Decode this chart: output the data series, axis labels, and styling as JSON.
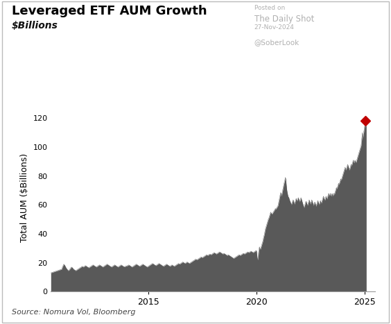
{
  "title": "Leveraged ETF AUM Growth",
  "subtitle": "$Billions",
  "ylabel": "Total AUM ($Billions)",
  "source": "Source: Nomura Vol, Bloomberg",
  "posted_on": "Posted on",
  "daily_shot": "The Daily Shot",
  "date_label": "27-Nov-2024",
  "soberlook": "@SoberLook",
  "fill_color": "#595959",
  "marker_color": "#c00000",
  "ylim": [
    0,
    130
  ],
  "yticks": [
    0,
    20,
    40,
    60,
    80,
    100,
    120
  ],
  "background_color": "#ffffff",
  "title_fontsize": 13,
  "subtitle_fontsize": 10,
  "ylabel_fontsize": 9,
  "source_fontsize": 8,
  "x_start_year": 2010.5,
  "x_end_year": 2025.5,
  "xticks": [
    2015,
    2020,
    2025
  ],
  "series": [
    [
      2010.5,
      13.0
    ],
    [
      2010.6,
      13.5
    ],
    [
      2010.7,
      14.0
    ],
    [
      2010.8,
      14.5
    ],
    [
      2010.9,
      15.0
    ],
    [
      2011.0,
      15.5
    ],
    [
      2011.05,
      17.5
    ],
    [
      2011.1,
      19.0
    ],
    [
      2011.15,
      18.0
    ],
    [
      2011.2,
      16.5
    ],
    [
      2011.25,
      15.5
    ],
    [
      2011.3,
      14.5
    ],
    [
      2011.35,
      15.0
    ],
    [
      2011.4,
      16.0
    ],
    [
      2011.45,
      17.0
    ],
    [
      2011.5,
      16.5
    ],
    [
      2011.55,
      15.5
    ],
    [
      2011.6,
      15.0
    ],
    [
      2011.65,
      14.5
    ],
    [
      2011.7,
      15.0
    ],
    [
      2011.75,
      15.5
    ],
    [
      2011.8,
      16.0
    ],
    [
      2011.85,
      16.5
    ],
    [
      2011.9,
      17.0
    ],
    [
      2011.95,
      17.5
    ],
    [
      2012.0,
      17.0
    ],
    [
      2012.05,
      17.5
    ],
    [
      2012.1,
      18.0
    ],
    [
      2012.15,
      17.5
    ],
    [
      2012.2,
      17.0
    ],
    [
      2012.25,
      16.5
    ],
    [
      2012.3,
      17.0
    ],
    [
      2012.35,
      17.5
    ],
    [
      2012.4,
      18.0
    ],
    [
      2012.45,
      18.5
    ],
    [
      2012.5,
      18.0
    ],
    [
      2012.55,
      17.5
    ],
    [
      2012.6,
      17.0
    ],
    [
      2012.65,
      17.5
    ],
    [
      2012.7,
      18.0
    ],
    [
      2012.75,
      18.5
    ],
    [
      2012.8,
      18.0
    ],
    [
      2012.85,
      17.5
    ],
    [
      2012.9,
      17.0
    ],
    [
      2012.95,
      17.5
    ],
    [
      2013.0,
      18.0
    ],
    [
      2013.05,
      18.5
    ],
    [
      2013.1,
      19.0
    ],
    [
      2013.15,
      18.5
    ],
    [
      2013.2,
      18.0
    ],
    [
      2013.25,
      17.5
    ],
    [
      2013.3,
      17.0
    ],
    [
      2013.35,
      17.5
    ],
    [
      2013.4,
      18.0
    ],
    [
      2013.45,
      18.5
    ],
    [
      2013.5,
      18.0
    ],
    [
      2013.55,
      17.5
    ],
    [
      2013.6,
      17.0
    ],
    [
      2013.65,
      17.5
    ],
    [
      2013.7,
      18.0
    ],
    [
      2013.75,
      18.5
    ],
    [
      2013.8,
      18.0
    ],
    [
      2013.85,
      17.5
    ],
    [
      2013.9,
      17.2
    ],
    [
      2013.95,
      17.5
    ],
    [
      2014.0,
      17.8
    ],
    [
      2014.05,
      18.0
    ],
    [
      2014.1,
      18.5
    ],
    [
      2014.15,
      18.0
    ],
    [
      2014.2,
      17.5
    ],
    [
      2014.25,
      17.0
    ],
    [
      2014.3,
      17.5
    ],
    [
      2014.35,
      18.0
    ],
    [
      2014.4,
      18.5
    ],
    [
      2014.45,
      19.0
    ],
    [
      2014.5,
      18.5
    ],
    [
      2014.55,
      18.0
    ],
    [
      2014.6,
      17.5
    ],
    [
      2014.65,
      18.0
    ],
    [
      2014.7,
      18.5
    ],
    [
      2014.75,
      19.0
    ],
    [
      2014.8,
      18.5
    ],
    [
      2014.85,
      18.0
    ],
    [
      2014.9,
      17.5
    ],
    [
      2014.95,
      17.0
    ],
    [
      2015.0,
      17.5
    ],
    [
      2015.05,
      18.0
    ],
    [
      2015.1,
      18.5
    ],
    [
      2015.15,
      19.0
    ],
    [
      2015.2,
      19.5
    ],
    [
      2015.25,
      19.0
    ],
    [
      2015.3,
      18.5
    ],
    [
      2015.35,
      18.0
    ],
    [
      2015.4,
      18.5
    ],
    [
      2015.45,
      19.0
    ],
    [
      2015.5,
      19.5
    ],
    [
      2015.55,
      19.0
    ],
    [
      2015.6,
      18.5
    ],
    [
      2015.65,
      18.0
    ],
    [
      2015.7,
      17.5
    ],
    [
      2015.75,
      18.0
    ],
    [
      2015.8,
      18.5
    ],
    [
      2015.85,
      19.0
    ],
    [
      2015.9,
      18.5
    ],
    [
      2015.95,
      18.0
    ],
    [
      2016.0,
      17.5
    ],
    [
      2016.05,
      18.0
    ],
    [
      2016.1,
      18.5
    ],
    [
      2016.15,
      18.0
    ],
    [
      2016.2,
      17.5
    ],
    [
      2016.25,
      18.0
    ],
    [
      2016.3,
      18.5
    ],
    [
      2016.35,
      19.0
    ],
    [
      2016.4,
      19.5
    ],
    [
      2016.45,
      19.0
    ],
    [
      2016.5,
      19.5
    ],
    [
      2016.55,
      20.0
    ],
    [
      2016.6,
      20.5
    ],
    [
      2016.65,
      20.0
    ],
    [
      2016.7,
      19.5
    ],
    [
      2016.75,
      20.0
    ],
    [
      2016.8,
      20.5
    ],
    [
      2016.85,
      20.0
    ],
    [
      2016.9,
      19.5
    ],
    [
      2016.95,
      20.0
    ],
    [
      2017.0,
      20.5
    ],
    [
      2017.05,
      21.0
    ],
    [
      2017.1,
      21.5
    ],
    [
      2017.15,
      22.0
    ],
    [
      2017.2,
      22.5
    ],
    [
      2017.25,
      22.0
    ],
    [
      2017.3,
      22.5
    ],
    [
      2017.35,
      23.0
    ],
    [
      2017.4,
      23.5
    ],
    [
      2017.45,
      24.0
    ],
    [
      2017.5,
      23.5
    ],
    [
      2017.55,
      24.0
    ],
    [
      2017.6,
      24.5
    ],
    [
      2017.65,
      25.0
    ],
    [
      2017.7,
      25.5
    ],
    [
      2017.75,
      25.0
    ],
    [
      2017.8,
      25.5
    ],
    [
      2017.85,
      26.0
    ],
    [
      2017.9,
      25.5
    ],
    [
      2017.95,
      26.0
    ],
    [
      2018.0,
      26.5
    ],
    [
      2018.05,
      27.0
    ],
    [
      2018.1,
      26.5
    ],
    [
      2018.15,
      26.0
    ],
    [
      2018.2,
      26.5
    ],
    [
      2018.25,
      27.0
    ],
    [
      2018.3,
      27.5
    ],
    [
      2018.35,
      27.0
    ],
    [
      2018.4,
      26.5
    ],
    [
      2018.45,
      26.0
    ],
    [
      2018.5,
      26.5
    ],
    [
      2018.55,
      26.0
    ],
    [
      2018.6,
      25.5
    ],
    [
      2018.65,
      25.0
    ],
    [
      2018.7,
      25.5
    ],
    [
      2018.75,
      25.0
    ],
    [
      2018.8,
      24.5
    ],
    [
      2018.85,
      24.0
    ],
    [
      2018.9,
      23.5
    ],
    [
      2018.95,
      23.0
    ],
    [
      2019.0,
      23.5
    ],
    [
      2019.05,
      24.0
    ],
    [
      2019.1,
      24.5
    ],
    [
      2019.15,
      25.0
    ],
    [
      2019.2,
      25.5
    ],
    [
      2019.25,
      25.0
    ],
    [
      2019.3,
      25.5
    ],
    [
      2019.35,
      26.0
    ],
    [
      2019.4,
      26.5
    ],
    [
      2019.45,
      26.0
    ],
    [
      2019.5,
      26.5
    ],
    [
      2019.55,
      27.0
    ],
    [
      2019.6,
      27.5
    ],
    [
      2019.65,
      27.0
    ],
    [
      2019.7,
      27.5
    ],
    [
      2019.75,
      28.0
    ],
    [
      2019.8,
      27.5
    ],
    [
      2019.85,
      27.0
    ],
    [
      2019.9,
      27.5
    ],
    [
      2019.95,
      28.0
    ],
    [
      2020.0,
      28.5
    ],
    [
      2020.02,
      26.0
    ],
    [
      2020.04,
      23.0
    ],
    [
      2020.06,
      22.0
    ],
    [
      2020.08,
      24.0
    ],
    [
      2020.1,
      27.0
    ],
    [
      2020.12,
      29.0
    ],
    [
      2020.14,
      31.0
    ],
    [
      2020.16,
      30.0
    ],
    [
      2020.18,
      29.0
    ],
    [
      2020.2,
      30.0
    ],
    [
      2020.22,
      31.0
    ],
    [
      2020.24,
      32.0
    ],
    [
      2020.26,
      33.0
    ],
    [
      2020.28,
      34.0
    ],
    [
      2020.3,
      35.0
    ],
    [
      2020.32,
      36.5
    ],
    [
      2020.34,
      38.0
    ],
    [
      2020.36,
      39.0
    ],
    [
      2020.38,
      40.5
    ],
    [
      2020.4,
      42.0
    ],
    [
      2020.42,
      43.5
    ],
    [
      2020.44,
      44.5
    ],
    [
      2020.46,
      45.5
    ],
    [
      2020.48,
      46.5
    ],
    [
      2020.5,
      47.5
    ],
    [
      2020.52,
      48.5
    ],
    [
      2020.54,
      49.5
    ],
    [
      2020.56,
      50.5
    ],
    [
      2020.58,
      51.0
    ],
    [
      2020.6,
      52.0
    ],
    [
      2020.62,
      53.0
    ],
    [
      2020.64,
      54.0
    ],
    [
      2020.66,
      55.0
    ],
    [
      2020.68,
      54.5
    ],
    [
      2020.7,
      54.0
    ],
    [
      2020.72,
      53.5
    ],
    [
      2020.74,
      54.0
    ],
    [
      2020.76,
      54.5
    ],
    [
      2020.78,
      55.0
    ],
    [
      2020.8,
      55.5
    ],
    [
      2020.82,
      56.0
    ],
    [
      2020.84,
      56.5
    ],
    [
      2020.86,
      57.0
    ],
    [
      2020.88,
      57.5
    ],
    [
      2020.9,
      57.0
    ],
    [
      2020.92,
      57.5
    ],
    [
      2020.94,
      58.0
    ],
    [
      2020.96,
      58.5
    ],
    [
      2020.98,
      59.0
    ],
    [
      2021.0,
      59.5
    ],
    [
      2021.02,
      61.0
    ],
    [
      2021.04,
      62.5
    ],
    [
      2021.06,
      64.0
    ],
    [
      2021.08,
      65.5
    ],
    [
      2021.1,
      67.0
    ],
    [
      2021.12,
      68.5
    ],
    [
      2021.14,
      67.5
    ],
    [
      2021.16,
      66.0
    ],
    [
      2021.18,
      67.5
    ],
    [
      2021.2,
      69.0
    ],
    [
      2021.22,
      70.5
    ],
    [
      2021.24,
      72.0
    ],
    [
      2021.26,
      73.5
    ],
    [
      2021.28,
      75.0
    ],
    [
      2021.3,
      76.0
    ],
    [
      2021.32,
      77.5
    ],
    [
      2021.34,
      79.0
    ],
    [
      2021.36,
      77.5
    ],
    [
      2021.38,
      74.0
    ],
    [
      2021.4,
      71.0
    ],
    [
      2021.42,
      69.0
    ],
    [
      2021.44,
      67.5
    ],
    [
      2021.46,
      66.0
    ],
    [
      2021.48,
      65.5
    ],
    [
      2021.5,
      65.0
    ],
    [
      2021.52,
      64.0
    ],
    [
      2021.54,
      63.0
    ],
    [
      2021.56,
      62.5
    ],
    [
      2021.58,
      61.5
    ],
    [
      2021.6,
      61.0
    ],
    [
      2021.62,
      60.0
    ],
    [
      2021.64,
      61.0
    ],
    [
      2021.66,
      62.0
    ],
    [
      2021.68,
      63.0
    ],
    [
      2021.7,
      63.5
    ],
    [
      2021.72,
      62.5
    ],
    [
      2021.74,
      61.5
    ],
    [
      2021.76,
      60.5
    ],
    [
      2021.78,
      61.5
    ],
    [
      2021.8,
      62.5
    ],
    [
      2021.82,
      63.5
    ],
    [
      2021.84,
      64.5
    ],
    [
      2021.86,
      63.5
    ],
    [
      2021.88,
      62.5
    ],
    [
      2021.9,
      63.5
    ],
    [
      2021.92,
      64.5
    ],
    [
      2021.94,
      65.0
    ],
    [
      2021.96,
      64.0
    ],
    [
      2021.98,
      63.0
    ],
    [
      2022.0,
      62.0
    ],
    [
      2022.02,
      63.0
    ],
    [
      2022.04,
      64.0
    ],
    [
      2022.06,
      65.0
    ],
    [
      2022.08,
      64.0
    ],
    [
      2022.1,
      63.0
    ],
    [
      2022.12,
      62.0
    ],
    [
      2022.14,
      61.0
    ],
    [
      2022.16,
      60.0
    ],
    [
      2022.18,
      59.0
    ],
    [
      2022.2,
      58.0
    ],
    [
      2022.22,
      59.0
    ],
    [
      2022.24,
      60.0
    ],
    [
      2022.26,
      61.0
    ],
    [
      2022.28,
      62.0
    ],
    [
      2022.3,
      62.5
    ],
    [
      2022.32,
      61.5
    ],
    [
      2022.34,
      60.5
    ],
    [
      2022.36,
      59.5
    ],
    [
      2022.38,
      60.5
    ],
    [
      2022.4,
      61.5
    ],
    [
      2022.42,
      62.5
    ],
    [
      2022.44,
      63.5
    ],
    [
      2022.46,
      62.5
    ],
    [
      2022.48,
      61.5
    ],
    [
      2022.5,
      60.5
    ],
    [
      2022.52,
      61.5
    ],
    [
      2022.54,
      62.5
    ],
    [
      2022.56,
      63.5
    ],
    [
      2022.58,
      62.5
    ],
    [
      2022.6,
      61.5
    ],
    [
      2022.62,
      60.5
    ],
    [
      2022.64,
      59.5
    ],
    [
      2022.66,
      60.5
    ],
    [
      2022.68,
      61.5
    ],
    [
      2022.7,
      62.0
    ],
    [
      2022.72,
      61.0
    ],
    [
      2022.74,
      60.0
    ],
    [
      2022.76,
      59.0
    ],
    [
      2022.78,
      60.0
    ],
    [
      2022.8,
      61.0
    ],
    [
      2022.82,
      62.0
    ],
    [
      2022.84,
      63.0
    ],
    [
      2022.86,
      62.0
    ],
    [
      2022.88,
      61.0
    ],
    [
      2022.9,
      60.0
    ],
    [
      2022.92,
      61.0
    ],
    [
      2022.94,
      62.0
    ],
    [
      2022.96,
      63.0
    ],
    [
      2022.98,
      62.0
    ],
    [
      2023.0,
      61.0
    ],
    [
      2023.02,
      62.0
    ],
    [
      2023.04,
      63.0
    ],
    [
      2023.06,
      64.0
    ],
    [
      2023.08,
      65.0
    ],
    [
      2023.1,
      66.0
    ],
    [
      2023.12,
      65.0
    ],
    [
      2023.14,
      64.0
    ],
    [
      2023.16,
      63.0
    ],
    [
      2023.18,
      64.0
    ],
    [
      2023.2,
      65.0
    ],
    [
      2023.22,
      66.0
    ],
    [
      2023.24,
      65.0
    ],
    [
      2023.26,
      64.0
    ],
    [
      2023.28,
      65.0
    ],
    [
      2023.3,
      66.0
    ],
    [
      2023.32,
      67.0
    ],
    [
      2023.34,
      68.0
    ],
    [
      2023.36,
      67.0
    ],
    [
      2023.38,
      66.0
    ],
    [
      2023.4,
      67.0
    ],
    [
      2023.42,
      68.0
    ],
    [
      2023.44,
      67.0
    ],
    [
      2023.46,
      66.0
    ],
    [
      2023.48,
      67.0
    ],
    [
      2023.5,
      68.0
    ],
    [
      2023.52,
      67.0
    ],
    [
      2023.54,
      66.0
    ],
    [
      2023.56,
      67.0
    ],
    [
      2023.58,
      68.0
    ],
    [
      2023.6,
      67.0
    ],
    [
      2023.62,
      68.0
    ],
    [
      2023.64,
      69.0
    ],
    [
      2023.66,
      70.0
    ],
    [
      2023.68,
      71.0
    ],
    [
      2023.7,
      72.0
    ],
    [
      2023.72,
      71.0
    ],
    [
      2023.74,
      72.0
    ],
    [
      2023.76,
      73.0
    ],
    [
      2023.78,
      74.0
    ],
    [
      2023.8,
      75.0
    ],
    [
      2023.82,
      74.0
    ],
    [
      2023.84,
      75.0
    ],
    [
      2023.86,
      76.0
    ],
    [
      2023.88,
      77.0
    ],
    [
      2023.9,
      78.0
    ],
    [
      2023.92,
      77.0
    ],
    [
      2023.94,
      78.0
    ],
    [
      2023.96,
      79.0
    ],
    [
      2023.98,
      80.0
    ],
    [
      2024.0,
      81.0
    ],
    [
      2024.02,
      82.0
    ],
    [
      2024.04,
      83.0
    ],
    [
      2024.06,
      84.0
    ],
    [
      2024.08,
      85.0
    ],
    [
      2024.1,
      86.0
    ],
    [
      2024.12,
      85.0
    ],
    [
      2024.14,
      84.0
    ],
    [
      2024.16,
      85.0
    ],
    [
      2024.18,
      86.0
    ],
    [
      2024.2,
      87.0
    ],
    [
      2024.22,
      88.0
    ],
    [
      2024.24,
      87.0
    ],
    [
      2024.26,
      86.0
    ],
    [
      2024.28,
      85.0
    ],
    [
      2024.3,
      84.0
    ],
    [
      2024.32,
      85.0
    ],
    [
      2024.34,
      86.0
    ],
    [
      2024.36,
      87.0
    ],
    [
      2024.38,
      88.0
    ],
    [
      2024.4,
      87.0
    ],
    [
      2024.42,
      88.0
    ],
    [
      2024.44,
      89.0
    ],
    [
      2024.46,
      90.0
    ],
    [
      2024.48,
      91.0
    ],
    [
      2024.5,
      90.0
    ],
    [
      2024.52,
      89.0
    ],
    [
      2024.54,
      90.0
    ],
    [
      2024.56,
      91.0
    ],
    [
      2024.58,
      90.0
    ],
    [
      2024.6,
      89.0
    ],
    [
      2024.62,
      90.0
    ],
    [
      2024.64,
      91.0
    ],
    [
      2024.66,
      92.0
    ],
    [
      2024.68,
      93.0
    ],
    [
      2024.7,
      94.0
    ],
    [
      2024.72,
      95.0
    ],
    [
      2024.74,
      96.0
    ],
    [
      2024.76,
      97.0
    ],
    [
      2024.78,
      98.0
    ],
    [
      2024.8,
      99.0
    ],
    [
      2024.82,
      100.0
    ],
    [
      2024.84,
      101.0
    ],
    [
      2024.85,
      102.5
    ],
    [
      2024.86,
      104.0
    ],
    [
      2024.87,
      105.5
    ],
    [
      2024.88,
      107.0
    ],
    [
      2024.89,
      108.5
    ],
    [
      2024.9,
      110.0
    ],
    [
      2024.91,
      108.0
    ],
    [
      2024.92,
      106.0
    ],
    [
      2024.93,
      107.0
    ],
    [
      2024.94,
      108.0
    ],
    [
      2024.95,
      109.0
    ],
    [
      2024.96,
      110.0
    ],
    [
      2024.97,
      111.0
    ],
    [
      2024.98,
      112.0
    ],
    [
      2024.99,
      113.0
    ],
    [
      2025.0,
      114.0
    ],
    [
      2025.01,
      115.0
    ],
    [
      2025.02,
      116.0
    ],
    [
      2025.03,
      117.0
    ],
    [
      2025.04,
      118.0
    ],
    [
      2025.05,
      116.0
    ],
    [
      2025.06,
      114.0
    ],
    [
      2025.07,
      115.5
    ],
    [
      2025.08,
      117.5
    ]
  ],
  "marker_x": 2025.04,
  "marker_y": 118.0
}
